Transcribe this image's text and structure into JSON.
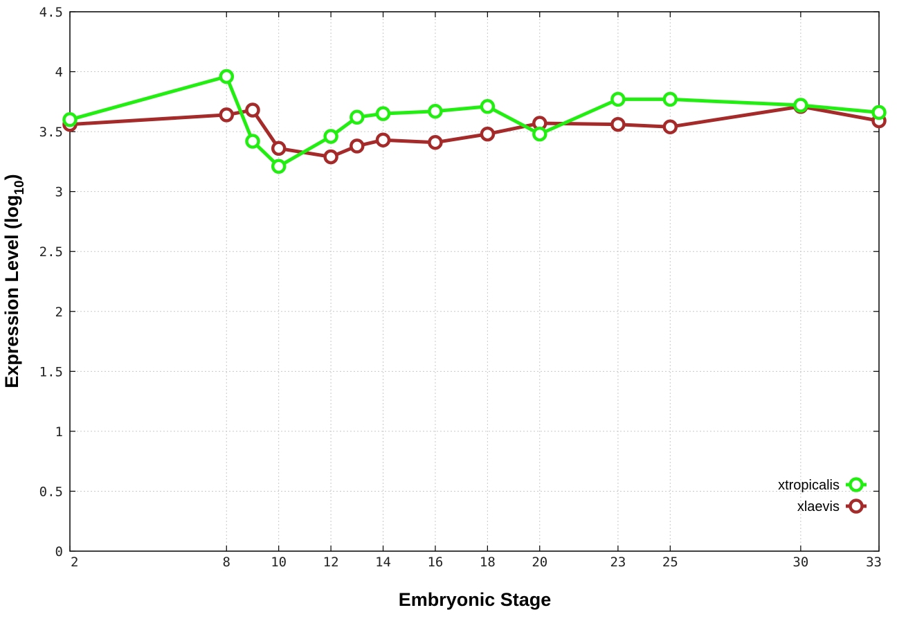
{
  "chart_data": {
    "type": "line",
    "title": "",
    "xlabel": "Embryonic Stage",
    "ylabel_main": "Expression Level (log",
    "ylabel_sub": "10",
    "ylabel_close": ")",
    "x": [
      2,
      8,
      9,
      10,
      12,
      13,
      14,
      16,
      18,
      20,
      23,
      25,
      30,
      33
    ],
    "x_ticks": [
      2,
      8,
      10,
      12,
      14,
      16,
      18,
      20,
      23,
      25,
      30,
      33
    ],
    "x_tick_labels": [
      "2",
      "8",
      "10",
      "12",
      "14",
      "16",
      "18",
      "20",
      "23",
      "25",
      "30",
      "33"
    ],
    "xlim": [
      2,
      33
    ],
    "ylim": [
      0,
      4.5
    ],
    "y_ticks": [
      0,
      0.5,
      1,
      1.5,
      2,
      2.5,
      3,
      3.5,
      4,
      4.5
    ],
    "y_tick_labels": [
      "0",
      "0.5",
      "1",
      "1.5",
      "2",
      "2.5",
      "3",
      "3.5",
      "4",
      "4.5"
    ],
    "grid": true,
    "legend_position": "bottom-right",
    "series": [
      {
        "name": "xtropicalis",
        "color": "#22ee11",
        "values": [
          3.6,
          3.96,
          3.42,
          3.21,
          3.46,
          3.62,
          3.65,
          3.67,
          3.71,
          3.48,
          3.77,
          3.77,
          3.72,
          3.66
        ]
      },
      {
        "name": "xlaevis",
        "color": "#a52a2a",
        "values": [
          3.56,
          3.64,
          3.68,
          3.36,
          3.29,
          3.38,
          3.43,
          3.41,
          3.48,
          3.57,
          3.56,
          3.54,
          3.71,
          3.59
        ]
      }
    ]
  }
}
